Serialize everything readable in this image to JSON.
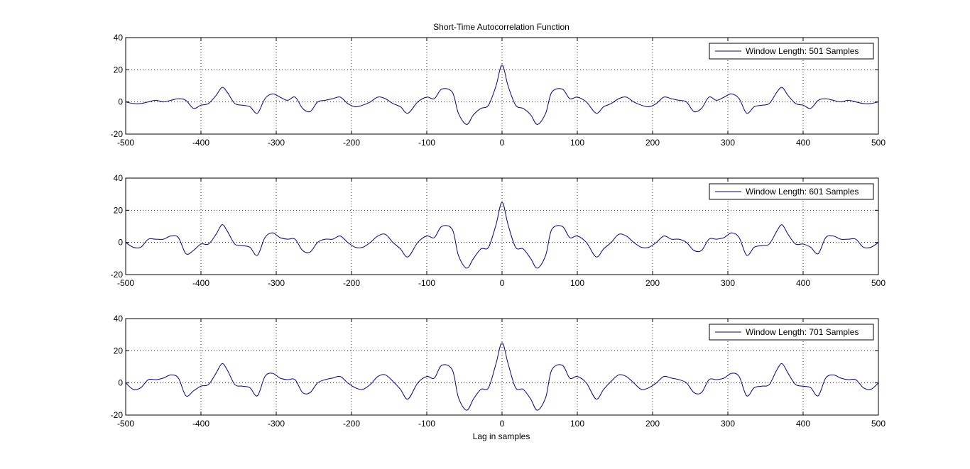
{
  "title": "Short-Time Autocorrelation Function",
  "xlabel": "Lag in samples",
  "colors": {
    "line": "#00008b",
    "axes": "#000000",
    "background": "#ffffff"
  },
  "chart_data": [
    {
      "type": "line",
      "title": "Short-Time Autocorrelation Function",
      "xlabel": "",
      "ylabel": "",
      "xlim": [
        -500,
        500
      ],
      "ylim": [
        -20,
        40
      ],
      "xticks": [
        -500,
        -400,
        -300,
        -200,
        -100,
        0,
        100,
        200,
        300,
        400,
        500
      ],
      "yticks": [
        -20,
        0,
        20,
        40
      ],
      "grid": true,
      "legend_position": "top-right",
      "series": [
        {
          "name": "Window Length: 501 Samples",
          "x": [
            -500,
            -490,
            -480,
            -470,
            -460,
            -450,
            -440,
            -430,
            -420,
            -410,
            -400,
            -390,
            -380,
            -372,
            -365,
            -355,
            -345,
            -335,
            -325,
            -315,
            -305,
            -295,
            -285,
            -275,
            -265,
            -255,
            -245,
            -235,
            -225,
            -215,
            -205,
            -195,
            -185,
            -175,
            -165,
            -155,
            -145,
            -135,
            -125,
            -112,
            -100,
            -90,
            -80,
            -66,
            -58,
            -47,
            -38,
            -28,
            -18,
            -8,
            0,
            8,
            18,
            28,
            38,
            47,
            58,
            66,
            80,
            90,
            100,
            112,
            125,
            135,
            145,
            155,
            165,
            175,
            185,
            195,
            205,
            215,
            225,
            235,
            245,
            255,
            265,
            275,
            285,
            295,
            305,
            315,
            325,
            335,
            345,
            355,
            365,
            372,
            380,
            390,
            400,
            410,
            420,
            430,
            440,
            450,
            460,
            470,
            480,
            490,
            500
          ],
          "y": [
            0,
            -1,
            -1,
            0,
            1,
            0,
            1,
            2,
            1,
            -4,
            -2,
            -1,
            4,
            9,
            6,
            -1,
            -2,
            -3,
            -7,
            2,
            5,
            3,
            1,
            3,
            -4,
            -6,
            0,
            1,
            2,
            3,
            -1,
            -3,
            -2,
            0,
            3,
            2,
            -1,
            -3,
            -7,
            0,
            3,
            2,
            8,
            6,
            -7,
            -14,
            -8,
            -4,
            -2,
            10,
            23,
            10,
            -2,
            -4,
            -8,
            -14,
            -7,
            6,
            8,
            2,
            3,
            0,
            -7,
            -3,
            -1,
            2,
            3,
            0,
            -2,
            -3,
            -1,
            3,
            2,
            1,
            0,
            -6,
            -4,
            3,
            1,
            3,
            5,
            2,
            -7,
            -3,
            -2,
            -1,
            6,
            9,
            4,
            -1,
            -2,
            -4,
            1,
            2,
            1,
            0,
            1,
            0,
            -1,
            -1,
            0
          ]
        }
      ]
    },
    {
      "type": "line",
      "title": "",
      "xlabel": "",
      "ylabel": "",
      "xlim": [
        -500,
        500
      ],
      "ylim": [
        -20,
        40
      ],
      "xticks": [
        -500,
        -400,
        -300,
        -200,
        -100,
        0,
        100,
        200,
        300,
        400,
        500
      ],
      "yticks": [
        -20,
        0,
        20,
        40
      ],
      "grid": true,
      "legend_position": "top-right",
      "series": [
        {
          "name": "Window Length: 601 Samples",
          "x": [
            -500,
            -490,
            -480,
            -470,
            -460,
            -450,
            -440,
            -430,
            -420,
            -410,
            -400,
            -390,
            -380,
            -372,
            -365,
            -355,
            -345,
            -335,
            -325,
            -315,
            -305,
            -295,
            -285,
            -275,
            -265,
            -255,
            -245,
            -235,
            -225,
            -215,
            -205,
            -195,
            -185,
            -175,
            -165,
            -155,
            -145,
            -135,
            -125,
            -112,
            -100,
            -90,
            -80,
            -66,
            -58,
            -47,
            -38,
            -28,
            -18,
            -8,
            0,
            8,
            18,
            28,
            38,
            47,
            58,
            66,
            80,
            90,
            100,
            112,
            125,
            135,
            145,
            155,
            165,
            175,
            185,
            195,
            205,
            215,
            225,
            235,
            245,
            255,
            265,
            275,
            285,
            295,
            305,
            315,
            325,
            335,
            345,
            355,
            365,
            372,
            380,
            390,
            400,
            410,
            420,
            430,
            440,
            450,
            460,
            470,
            480,
            490,
            500
          ],
          "y": [
            0,
            -3,
            -3,
            2,
            2,
            2,
            4,
            3,
            -7,
            -5,
            -1,
            -1,
            5,
            11,
            7,
            -1,
            -2,
            -3,
            -8,
            3,
            6,
            3,
            2,
            2,
            -5,
            -6,
            0,
            2,
            2,
            4,
            0,
            -3,
            -3,
            0,
            4,
            5,
            0,
            -4,
            -9,
            0,
            4,
            3,
            10,
            8,
            -8,
            -16,
            -10,
            -4,
            -3,
            11,
            25,
            11,
            -3,
            -4,
            -10,
            -16,
            -8,
            8,
            10,
            3,
            4,
            0,
            -9,
            -4,
            0,
            5,
            4,
            0,
            -3,
            -3,
            0,
            4,
            2,
            2,
            0,
            -5,
            -5,
            2,
            2,
            3,
            6,
            3,
            -8,
            -3,
            -2,
            -1,
            7,
            11,
            5,
            -1,
            -1,
            -3,
            -7,
            3,
            4,
            2,
            2,
            2,
            -3,
            -3,
            0
          ]
        }
      ]
    },
    {
      "type": "line",
      "title": "",
      "xlabel": "Lag in samples",
      "ylabel": "",
      "xlim": [
        -500,
        500
      ],
      "ylim": [
        -20,
        40
      ],
      "xticks": [
        -500,
        -400,
        -300,
        -200,
        -100,
        0,
        100,
        200,
        300,
        400,
        500
      ],
      "yticks": [
        -20,
        0,
        20,
        40
      ],
      "grid": true,
      "legend_position": "top-right",
      "series": [
        {
          "name": "Window Length: 701 Samples",
          "x": [
            -500,
            -490,
            -480,
            -470,
            -460,
            -450,
            -440,
            -430,
            -420,
            -410,
            -400,
            -390,
            -380,
            -372,
            -365,
            -355,
            -345,
            -335,
            -325,
            -315,
            -305,
            -295,
            -285,
            -275,
            -265,
            -255,
            -245,
            -235,
            -225,
            -215,
            -205,
            -195,
            -185,
            -175,
            -165,
            -155,
            -145,
            -135,
            -125,
            -112,
            -100,
            -90,
            -80,
            -66,
            -58,
            -47,
            -38,
            -28,
            -18,
            -8,
            0,
            8,
            18,
            28,
            38,
            47,
            58,
            66,
            80,
            90,
            100,
            112,
            125,
            135,
            145,
            155,
            165,
            175,
            185,
            195,
            205,
            215,
            225,
            235,
            245,
            255,
            265,
            275,
            285,
            295,
            305,
            315,
            325,
            335,
            345,
            355,
            365,
            372,
            380,
            390,
            400,
            410,
            420,
            430,
            440,
            450,
            460,
            470,
            480,
            490,
            500
          ],
          "y": [
            0,
            -4,
            -3,
            2,
            2,
            3,
            5,
            3,
            -8,
            -5,
            -2,
            -1,
            6,
            12,
            8,
            -1,
            -2,
            -3,
            -8,
            4,
            6,
            3,
            2,
            2,
            -6,
            -6,
            0,
            2,
            3,
            4,
            0,
            -3,
            -4,
            -1,
            4,
            5,
            1,
            -4,
            -10,
            0,
            4,
            3,
            11,
            8,
            -9,
            -17,
            -10,
            -4,
            -3,
            12,
            25,
            12,
            -3,
            -4,
            -10,
            -17,
            -9,
            8,
            11,
            3,
            4,
            0,
            -10,
            -4,
            1,
            5,
            4,
            0,
            -4,
            -3,
            0,
            4,
            3,
            2,
            0,
            -6,
            -6,
            2,
            2,
            3,
            6,
            4,
            -8,
            -3,
            -2,
            -1,
            8,
            12,
            6,
            -1,
            -2,
            -3,
            -8,
            3,
            5,
            3,
            2,
            2,
            -3,
            -4,
            0
          ]
        }
      ]
    }
  ]
}
